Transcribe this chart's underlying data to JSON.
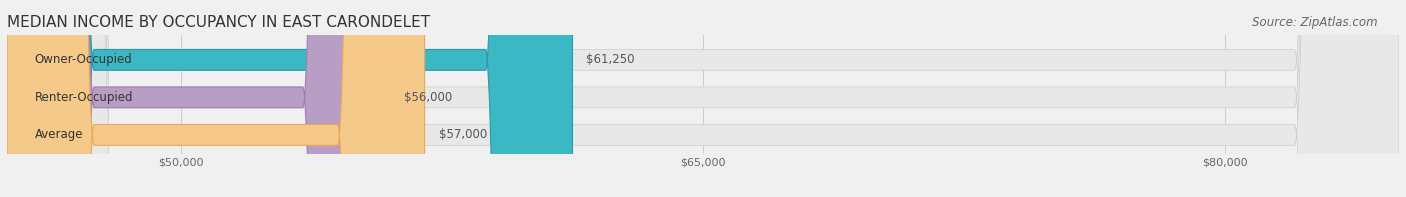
{
  "title": "MEDIAN INCOME BY OCCUPANCY IN EAST CARONDELET",
  "source_text": "Source: ZipAtlas.com",
  "categories": [
    "Owner-Occupied",
    "Renter-Occupied",
    "Average"
  ],
  "values": [
    61250,
    56000,
    57000
  ],
  "bar_colors": [
    "#3bb8c3",
    "#b89ec4",
    "#f5c98a"
  ],
  "bar_edge_colors": [
    "#2a9aa8",
    "#9a80b0",
    "#e8a85a"
  ],
  "value_labels": [
    "$61,250",
    "$56,000",
    "$57,000"
  ],
  "xlim_min": 45000,
  "xlim_max": 85000,
  "xticks": [
    50000,
    65000,
    80000
  ],
  "xtick_labels": [
    "$50,000",
    "$65,000",
    "$80,000"
  ],
  "background_color": "#f0f0f0",
  "bar_bg_color": "#e8e8e8",
  "title_fontsize": 11,
  "source_fontsize": 8.5
}
